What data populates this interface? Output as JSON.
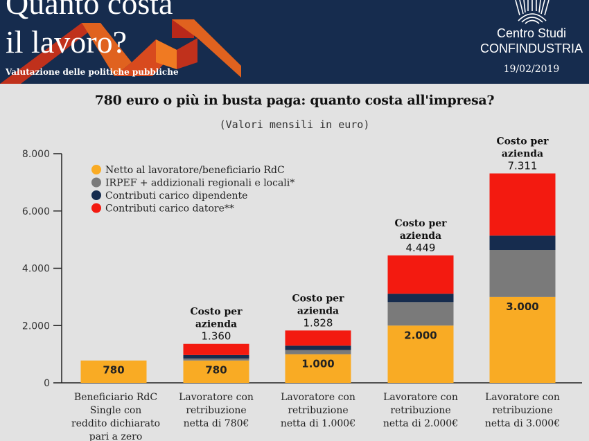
{
  "header": {
    "title_line1": "Quanto costa",
    "title_line2": "il lavoro?",
    "subtitle": "Valutazione delle politiche pubbliche",
    "org_line1": "Centro Studi",
    "org_line2": "CONFINDUSTRIA",
    "date": "19/02/2019",
    "logo_icon": "confindustria-logo-icon"
  },
  "colors": {
    "header_bg": "#162c4e",
    "netto": "#f9ab24",
    "irpef": "#7a7a7a",
    "contrib_dip": "#162c4e",
    "contrib_dat": "#f31a10",
    "background": "#e2e2e2"
  },
  "chart_data": {
    "type": "bar",
    "stacked": true,
    "title": "780 euro o più in busta paga: quanto costa all'impresa?",
    "subtitle": "(Valori mensili in euro)",
    "xlabel": "",
    "ylabel": "",
    "ylim": [
      0,
      8000
    ],
    "yticks": [
      0,
      2000,
      4000,
      6000,
      8000
    ],
    "ytick_labels": [
      "0",
      "2.000",
      "4.000",
      "6.000",
      "8.000"
    ],
    "grid": false,
    "legend_position": "top-left",
    "categories": [
      [
        "Beneficiario RdC",
        "Single con",
        "reddito dichiarato",
        "pari a zero"
      ],
      [
        "Lavoratore con",
        "retribuzione",
        "netta di 780€"
      ],
      [
        "Lavoratore con",
        "retribuzione",
        "netta di 1.000€"
      ],
      [
        "Lavoratore con",
        "retribuzione",
        "netta di 2.000€"
      ],
      [
        "Lavoratore con",
        "retribuzione",
        "netta di 3.000€"
      ]
    ],
    "series": [
      {
        "name": "Netto al lavoratore/beneficiario RdC",
        "color_key": "netto",
        "values": [
          780,
          780,
          1000,
          2000,
          3000
        ],
        "labels": [
          "780",
          "780",
          "1.000",
          "2.000",
          "3.000"
        ]
      },
      {
        "name": "IRPEF + addizionali regionali e locali*",
        "color_key": "irpef",
        "values": [
          0,
          70,
          148,
          820,
          1640
        ]
      },
      {
        "name": "Contributi carico dipendente",
        "color_key": "contrib_dip",
        "values": [
          0,
          120,
          150,
          290,
          500
        ]
      },
      {
        "name": "Contributi carico datore**",
        "color_key": "contrib_dat",
        "values": [
          0,
          390,
          530,
          1339,
          2171
        ]
      }
    ],
    "totals": [
      null,
      1360,
      1828,
      4449,
      7311
    ],
    "total_labels": [
      null,
      "1.360",
      "1.828",
      "4.449",
      "7.311"
    ],
    "total_caption": [
      "Costo per",
      "azienda"
    ]
  }
}
